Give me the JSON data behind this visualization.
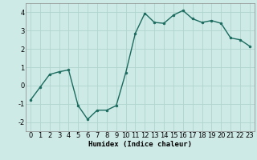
{
  "x": [
    0,
    1,
    2,
    3,
    4,
    5,
    6,
    7,
    8,
    9,
    10,
    11,
    12,
    13,
    14,
    15,
    16,
    17,
    18,
    19,
    20,
    21,
    22,
    23
  ],
  "y": [
    -0.8,
    -0.1,
    0.6,
    0.75,
    0.85,
    -1.1,
    -1.85,
    -1.35,
    -1.35,
    -1.1,
    0.7,
    2.85,
    3.95,
    3.45,
    3.4,
    3.85,
    4.1,
    3.65,
    3.45,
    3.55,
    3.4,
    2.6,
    2.5,
    2.15
  ],
  "line_color": "#1a6b5e",
  "marker": "o",
  "marker_size": 2.0,
  "bg_color": "#ceeae6",
  "grid_color": "#afd4ce",
  "xlabel": "Humidex (Indice chaleur)",
  "xlim": [
    -0.5,
    23.5
  ],
  "ylim": [
    -2.5,
    4.5
  ],
  "yticks": [
    -2,
    -1,
    0,
    1,
    2,
    3,
    4
  ],
  "xticks": [
    0,
    1,
    2,
    3,
    4,
    5,
    6,
    7,
    8,
    9,
    10,
    11,
    12,
    13,
    14,
    15,
    16,
    17,
    18,
    19,
    20,
    21,
    22,
    23
  ],
  "xlabel_fontsize": 6.5,
  "tick_fontsize": 6.0,
  "linewidth": 1.0
}
